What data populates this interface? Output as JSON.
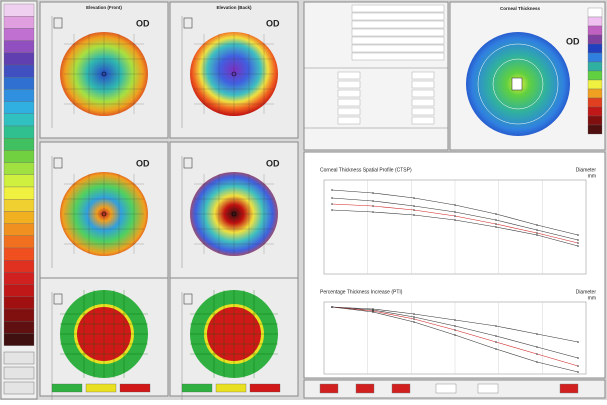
{
  "maps": [
    {
      "title": "Elevation (Front)",
      "eye": "OD"
    },
    {
      "title": "Elevation (Back)",
      "eye": "OD"
    },
    {
      "eye": "OD"
    },
    {
      "eye": "OD"
    }
  ],
  "thickness": {
    "title": "Corneal Thickness",
    "eye": "OD"
  },
  "charts": [
    {
      "title": "Corneal Thickness Spatial Profile (CTSP)",
      "axis_label": "Diameter",
      "unit": "mm"
    },
    {
      "title": "Percentage Thickness Increase (PTI)",
      "axis_label": "Diameter",
      "unit": "mm"
    }
  ]
}
